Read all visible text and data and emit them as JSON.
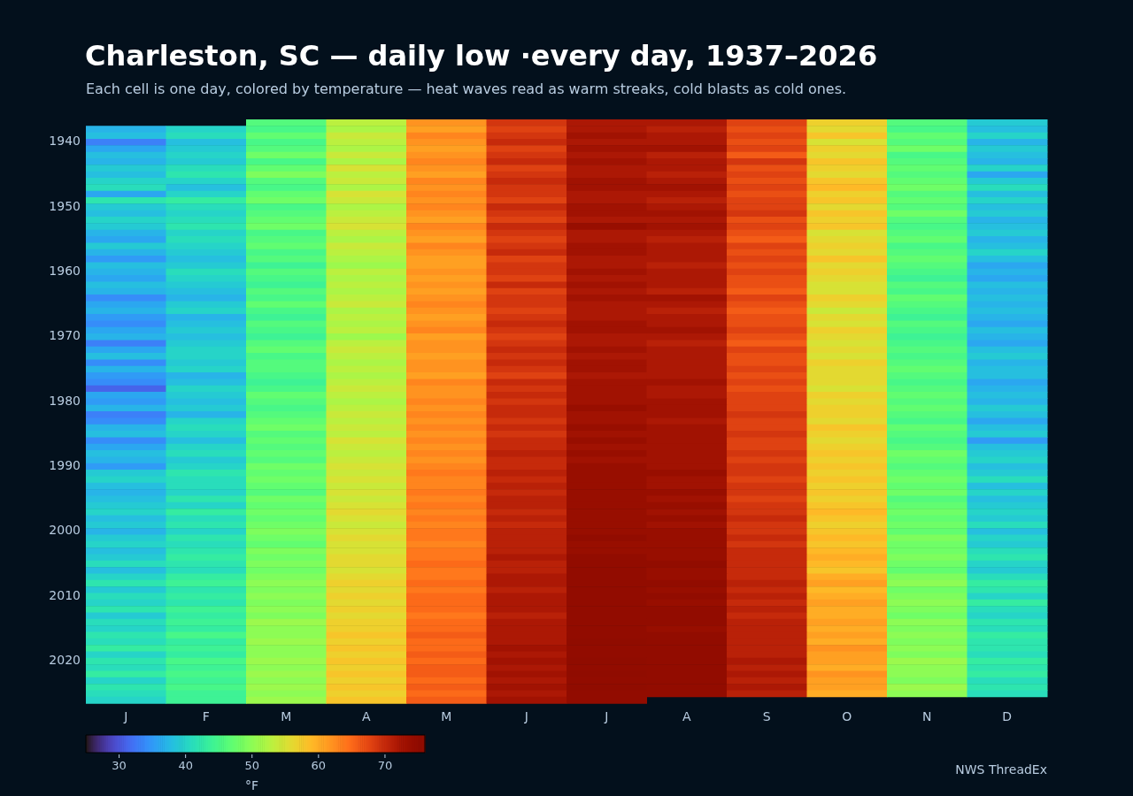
{
  "chart_data": {
    "type": "heatmap",
    "title": "Charleston, SC — daily low ·every day, 1937–2026",
    "subtitle": "Each cell is one day, colored by temperature — heat waves read as warm streaks, cold blasts as cold ones.",
    "clabel": "°F",
    "annotations": [
      "NWS ThreadEx"
    ],
    "categories": [
      "J",
      "F",
      "M",
      "A",
      "M",
      "J",
      "J",
      "A",
      "S",
      "O",
      "N",
      "D"
    ],
    "y_categories": [
      null,
      null,
      null,
      "1940",
      null,
      null,
      null,
      null,
      null,
      null,
      null,
      null,
      null,
      "1950",
      null,
      null,
      null,
      null,
      null,
      null,
      null,
      null,
      null,
      "1960",
      null,
      null,
      null,
      null,
      null,
      null,
      null,
      null,
      null,
      "1970",
      null,
      null,
      null,
      null,
      null,
      null,
      null,
      null,
      null,
      "1980",
      null,
      null,
      null,
      null,
      null,
      null,
      null,
      null,
      null,
      "1990",
      null,
      null,
      null,
      null,
      null,
      null,
      null,
      null,
      null,
      "2000",
      null,
      null,
      null,
      null,
      null,
      null,
      null,
      null,
      null,
      "2010",
      null,
      null,
      null,
      null,
      null,
      null,
      null,
      null,
      null,
      "2020",
      null,
      null,
      null,
      null,
      null,
      null
    ],
    "clim": [
      25,
      76
    ],
    "cticks": [
      30,
      40,
      50,
      60,
      70
    ],
    "cells": [
      [
        null,
        null,
        46,
        53,
        62,
        69,
        72,
        72,
        68,
        57,
        46,
        39
      ],
      [
        37,
        40,
        45,
        52,
        61,
        68,
        72,
        71,
        67,
        56,
        45,
        38
      ],
      [
        38,
        41,
        47,
        54,
        63,
        69,
        73,
        72,
        68,
        58,
        47,
        40
      ],
      [
        33,
        38,
        45,
        53,
        62,
        70,
        72,
        72,
        67,
        55,
        46,
        37
      ],
      [
        36,
        39,
        46,
        52,
        61,
        68,
        73,
        73,
        68,
        57,
        48,
        39
      ],
      [
        38,
        40,
        48,
        54,
        62,
        69,
        72,
        71,
        66,
        56,
        45,
        38
      ],
      [
        37,
        39,
        45,
        52,
        63,
        70,
        73,
        72,
        69,
        58,
        46,
        37
      ],
      [
        39,
        41,
        47,
        55,
        62,
        68,
        72,
        72,
        67,
        57,
        47,
        40
      ],
      [
        38,
        42,
        49,
        53,
        61,
        69,
        72,
        71,
        68,
        56,
        46,
        36
      ],
      [
        40,
        40,
        46,
        54,
        63,
        70,
        73,
        72,
        67,
        58,
        47,
        39
      ],
      [
        41,
        38,
        45,
        52,
        62,
        69,
        73,
        73,
        68,
        59,
        48,
        41
      ],
      [
        36,
        40,
        47,
        55,
        63,
        69,
        72,
        72,
        67,
        57,
        46,
        38
      ],
      [
        42,
        43,
        48,
        54,
        62,
        68,
        72,
        71,
        68,
        58,
        47,
        40
      ],
      [
        39,
        41,
        45,
        52,
        63,
        70,
        73,
        72,
        68,
        56,
        46,
        38
      ],
      [
        38,
        40,
        46,
        53,
        62,
        69,
        73,
        73,
        69,
        58,
        48,
        39
      ],
      [
        40,
        41,
        47,
        54,
        61,
        68,
        72,
        72,
        67,
        57,
        46,
        37
      ],
      [
        39,
        42,
        48,
        55,
        63,
        70,
        74,
        73,
        68,
        58,
        45,
        38
      ],
      [
        37,
        40,
        45,
        53,
        62,
        69,
        72,
        72,
        67,
        55,
        46,
        39
      ],
      [
        36,
        41,
        46,
        52,
        61,
        68,
        72,
        71,
        66,
        56,
        47,
        37
      ],
      [
        39,
        40,
        47,
        54,
        63,
        69,
        73,
        72,
        68,
        57,
        45,
        38
      ],
      [
        37,
        39,
        45,
        53,
        62,
        70,
        73,
        72,
        67,
        56,
        46,
        40
      ],
      [
        35,
        38,
        46,
        52,
        61,
        68,
        72,
        72,
        68,
        58,
        47,
        38
      ],
      [
        38,
        39,
        44,
        51,
        61,
        69,
        72,
        71,
        67,
        56,
        46,
        36
      ],
      [
        37,
        41,
        46,
        53,
        62,
        69,
        73,
        72,
        68,
        57,
        45,
        37
      ],
      [
        36,
        40,
        45,
        52,
        61,
        68,
        72,
        72,
        67,
        56,
        44,
        36
      ],
      [
        38,
        39,
        44,
        53,
        62,
        70,
        73,
        72,
        67,
        55,
        46,
        38
      ],
      [
        37,
        38,
        46,
        52,
        61,
        68,
        72,
        71,
        66,
        55,
        45,
        37
      ],
      [
        34,
        37,
        45,
        53,
        62,
        69,
        73,
        73,
        68,
        57,
        47,
        38
      ],
      [
        36,
        39,
        47,
        54,
        63,
        69,
        72,
        72,
        67,
        56,
        46,
        37
      ],
      [
        37,
        40,
        45,
        52,
        62,
        68,
        72,
        71,
        66,
        54,
        45,
        38
      ],
      [
        35,
        37,
        44,
        53,
        61,
        69,
        72,
        72,
        67,
        56,
        44,
        37
      ],
      [
        34,
        38,
        46,
        52,
        62,
        70,
        73,
        72,
        67,
        55,
        46,
        36
      ],
      [
        36,
        39,
        45,
        53,
        63,
        69,
        73,
        73,
        68,
        57,
        45,
        38
      ],
      [
        37,
        38,
        44,
        51,
        61,
        68,
        72,
        72,
        67,
        56,
        44,
        37
      ],
      [
        33,
        39,
        46,
        53,
        62,
        69,
        72,
        71,
        66,
        55,
        45,
        36
      ],
      [
        36,
        40,
        47,
        54,
        62,
        70,
        73,
        72,
        68,
        56,
        46,
        38
      ],
      [
        38,
        40,
        45,
        53,
        61,
        69,
        72,
        72,
        67,
        55,
        45,
        39
      ],
      [
        34,
        39,
        46,
        52,
        62,
        70,
        73,
        72,
        67,
        57,
        46,
        37
      ],
      [
        37,
        40,
        46,
        53,
        62,
        69,
        73,
        72,
        68,
        56,
        47,
        38
      ],
      [
        35,
        37,
        45,
        52,
        61,
        68,
        72,
        72,
        67,
        56,
        46,
        38
      ],
      [
        34,
        38,
        44,
        53,
        63,
        70,
        73,
        73,
        68,
        56,
        45,
        36
      ],
      [
        31,
        40,
        45,
        54,
        62,
        69,
        73,
        72,
        67,
        55,
        46,
        37
      ],
      [
        36,
        39,
        47,
        53,
        62,
        70,
        73,
        72,
        68,
        57,
        47,
        38
      ],
      [
        35,
        38,
        46,
        52,
        63,
        69,
        73,
        73,
        68,
        56,
        46,
        37
      ],
      [
        37,
        39,
        45,
        53,
        62,
        70,
        74,
        73,
        68,
        57,
        47,
        39
      ],
      [
        33,
        37,
        46,
        54,
        63,
        70,
        73,
        73,
        69,
        57,
        46,
        38
      ],
      [
        34,
        40,
        47,
        53,
        62,
        69,
        73,
        72,
        68,
        56,
        45,
        36
      ],
      [
        37,
        41,
        48,
        54,
        63,
        70,
        74,
        73,
        68,
        58,
        47,
        38
      ],
      [
        38,
        40,
        46,
        53,
        62,
        69,
        73,
        73,
        69,
        57,
        46,
        39
      ],
      [
        34,
        38,
        47,
        55,
        63,
        70,
        74,
        73,
        68,
        56,
        45,
        35
      ],
      [
        36,
        40,
        46,
        54,
        62,
        70,
        73,
        73,
        68,
        57,
        46,
        38
      ],
      [
        38,
        41,
        47,
        53,
        63,
        71,
        74,
        73,
        69,
        58,
        48,
        39
      ],
      [
        37,
        39,
        46,
        54,
        62,
        70,
        73,
        73,
        68,
        57,
        47,
        40
      ],
      [
        35,
        40,
        48,
        55,
        63,
        70,
        74,
        73,
        69,
        58,
        46,
        38
      ],
      [
        39,
        42,
        47,
        54,
        64,
        71,
        74,
        74,
        69,
        57,
        47,
        39
      ],
      [
        40,
        41,
        48,
        55,
        63,
        70,
        74,
        73,
        68,
        58,
        48,
        41
      ],
      [
        38,
        41,
        47,
        54,
        63,
        71,
        74,
        73,
        69,
        57,
        47,
        38
      ],
      [
        37,
        40,
        46,
        55,
        64,
        70,
        74,
        74,
        69,
        58,
        48,
        40
      ],
      [
        38,
        42,
        48,
        54,
        63,
        71,
        74,
        73,
        68,
        57,
        46,
        38
      ],
      [
        39,
        40,
        47,
        55,
        64,
        71,
        74,
        74,
        69,
        58,
        47,
        39
      ],
      [
        40,
        43,
        48,
        56,
        63,
        70,
        74,
        73,
        69,
        59,
        48,
        40
      ],
      [
        38,
        41,
        47,
        55,
        64,
        71,
        74,
        74,
        70,
        58,
        47,
        39
      ],
      [
        39,
        42,
        48,
        54,
        63,
        70,
        74,
        73,
        69,
        57,
        48,
        41
      ],
      [
        37,
        40,
        49,
        55,
        64,
        71,
        74,
        74,
        69,
        58,
        47,
        38
      ],
      [
        39,
        42,
        48,
        56,
        64,
        71,
        75,
        74,
        70,
        59,
        49,
        40
      ],
      [
        40,
        41,
        47,
        55,
        63,
        71,
        74,
        74,
        69,
        58,
        48,
        39
      ],
      [
        38,
        42,
        49,
        55,
        64,
        71,
        74,
        74,
        70,
        59,
        48,
        41
      ],
      [
        39,
        43,
        48,
        56,
        64,
        72,
        75,
        74,
        70,
        60,
        49,
        42
      ],
      [
        41,
        42,
        49,
        56,
        65,
        71,
        75,
        75,
        70,
        59,
        48,
        40
      ],
      [
        38,
        41,
        48,
        55,
        64,
        71,
        75,
        74,
        70,
        58,
        47,
        39
      ],
      [
        40,
        43,
        49,
        56,
        64,
        72,
        75,
        74,
        70,
        60,
        49,
        41
      ],
      [
        42,
        44,
        50,
        57,
        65,
        72,
        75,
        75,
        71,
        61,
        50,
        43
      ],
      [
        39,
        42,
        49,
        56,
        64,
        71,
        75,
        74,
        70,
        59,
        48,
        42
      ],
      [
        41,
        43,
        50,
        57,
        65,
        72,
        75,
        75,
        71,
        60,
        49,
        40
      ],
      [
        40,
        42,
        49,
        56,
        65,
        72,
        75,
        74,
        70,
        61,
        50,
        43
      ],
      [
        42,
        44,
        50,
        57,
        65,
        72,
        75,
        75,
        71,
        60,
        49,
        41
      ],
      [
        39,
        43,
        49,
        56,
        64,
        71,
        75,
        75,
        70,
        60,
        48,
        40
      ],
      [
        41,
        44,
        51,
        57,
        65,
        72,
        75,
        75,
        71,
        61,
        50,
        42
      ],
      [
        40,
        43,
        50,
        57,
        65,
        72,
        75,
        74,
        71,
        60,
        49,
        41
      ],
      [
        42,
        45,
        50,
        58,
        66,
        72,
        75,
        75,
        71,
        61,
        50,
        43
      ],
      [
        41,
        43,
        51,
        57,
        65,
        72,
        76,
        75,
        71,
        60,
        49,
        42
      ],
      [
        43,
        44,
        50,
        58,
        65,
        73,
        75,
        75,
        71,
        62,
        50,
        42
      ],
      [
        40,
        43,
        50,
        57,
        66,
        72,
        75,
        75,
        71,
        61,
        49,
        41
      ],
      [
        42,
        45,
        51,
        58,
        65,
        73,
        76,
        75,
        72,
        61,
        51,
        43
      ],
      [
        41,
        44,
        50,
        57,
        66,
        72,
        75,
        75,
        71,
        60,
        50,
        42
      ],
      [
        43,
        45,
        51,
        58,
        66,
        73,
        76,
        75,
        72,
        62,
        50,
        43
      ],
      [
        40,
        44,
        50,
        57,
        65,
        72,
        75,
        75,
        71,
        61,
        49,
        41
      ],
      [
        42,
        45,
        51,
        58,
        66,
        73,
        76,
        75,
        72,
        61,
        51,
        42
      ],
      [
        41,
        44,
        50,
        57,
        65,
        72,
        75,
        75,
        71,
        60,
        50,
        41
      ],
      [
        40,
        44,
        51,
        58,
        66,
        73,
        75,
        null,
        null,
        null,
        null,
        null
      ]
    ]
  }
}
